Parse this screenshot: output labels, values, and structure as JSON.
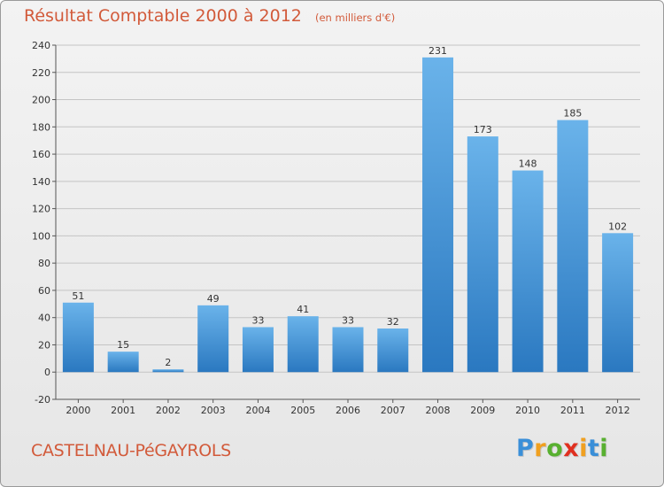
{
  "header": {
    "title": "Résultat Comptable 2000 à 2012",
    "unit": "(en milliers d'€)"
  },
  "footer": {
    "place": "CASTELNAU-PéGAYROLS",
    "logo": {
      "letters": [
        "P",
        "r",
        "o",
        "x",
        "i",
        "t",
        "i"
      ],
      "colors": [
        "#3a8fd8",
        "#f0a020",
        "#58b030",
        "#e03020",
        "#f0a020",
        "#3a8fd8",
        "#58b030"
      ]
    }
  },
  "colors": {
    "bar_top": "#6ab3ea",
    "bar_bottom": "#2a78c0",
    "grid": "#c4c4c4",
    "axis": "#555555"
  },
  "chart_data": {
    "type": "bar",
    "categories": [
      "2000",
      "2001",
      "2002",
      "2003",
      "2004",
      "2005",
      "2006",
      "2007",
      "2008",
      "2009",
      "2010",
      "2011",
      "2012"
    ],
    "values": [
      51,
      15,
      2,
      49,
      33,
      41,
      33,
      32,
      231,
      173,
      148,
      185,
      102
    ],
    "title": "Résultat Comptable 2000 à 2012",
    "xlabel": "",
    "ylabel": "",
    "ylim": [
      -20,
      240
    ],
    "yticks": [
      -20,
      0,
      20,
      40,
      60,
      80,
      100,
      120,
      140,
      160,
      180,
      200,
      220,
      240
    ],
    "grid": true,
    "data_labels": true
  }
}
